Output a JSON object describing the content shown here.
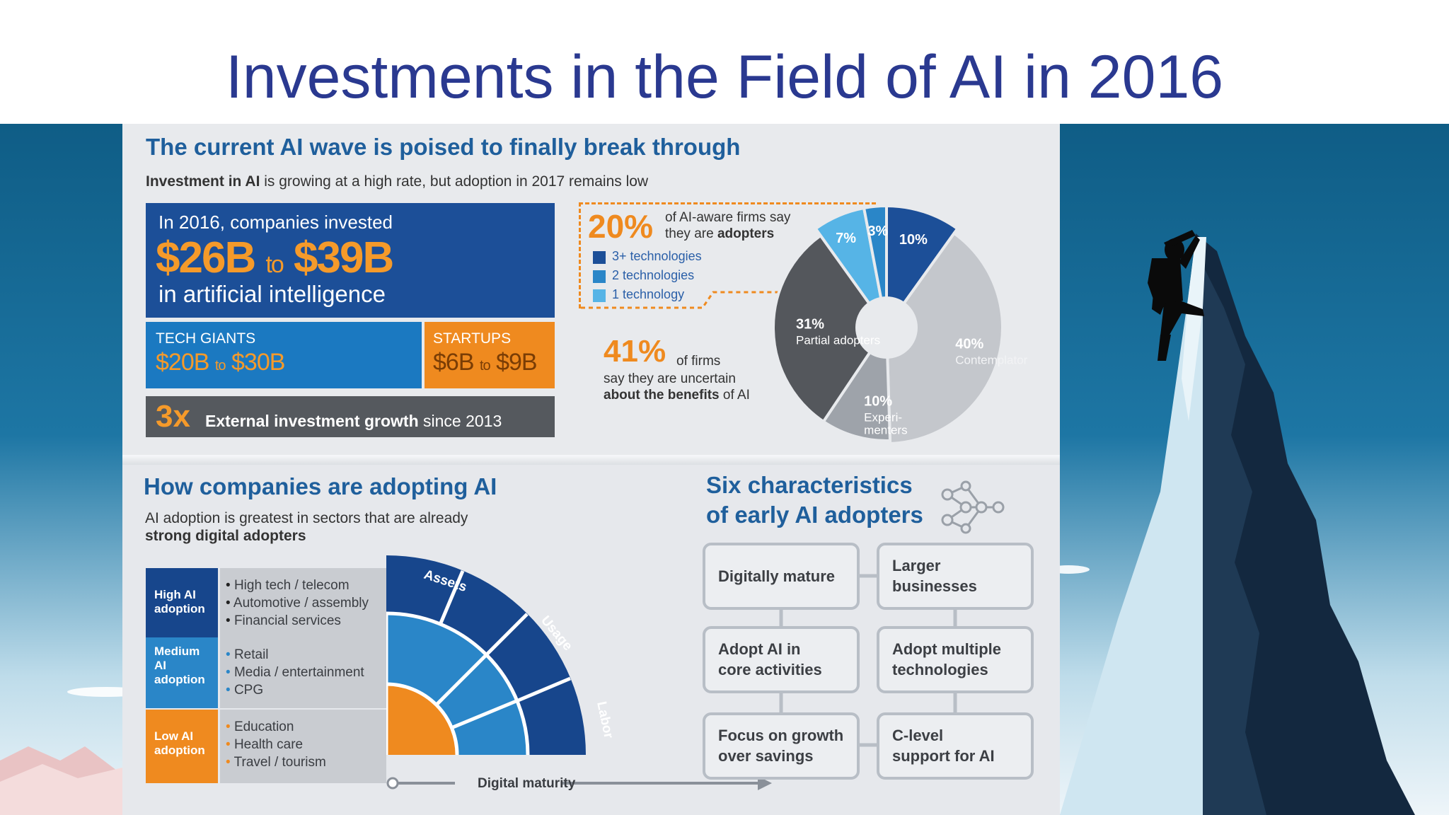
{
  "title": "Investments in the Field of AI in 2016",
  "top": {
    "heading": "The current AI wave is poised to finally break through",
    "subheading_bold": "Investment in AI",
    "subheading_rest": " is growing at a high rate, but adoption in 2017 remains low",
    "invested_intro": "In 2016, companies invested",
    "invested_low": "$26B",
    "invested_to": "to",
    "invested_high": "$39B",
    "invested_outro": "in artificial intelligence",
    "tech_giants_label": "TECH GIANTS",
    "tech_giants_low": "$20B",
    "tech_giants_to": "to",
    "tech_giants_high": "$30B",
    "startups_label": "STARTUPS",
    "startups_low": "$6B",
    "startups_to": "to",
    "startups_high": "$9B",
    "growth_multiple": "3x",
    "growth_text_bold": "External investment growth",
    "growth_text_rest": " since 2013"
  },
  "pie": {
    "adopters_pct": "20%",
    "adopters_text_1": "of AI-aware firms say",
    "adopters_text_2a": "they are ",
    "adopters_text_2b": "adopters",
    "legend": [
      {
        "label": "3+ technologies",
        "color": "#1c4f98"
      },
      {
        "label": "2 technologies",
        "color": "#2a86c8"
      },
      {
        "label": "1 technology",
        "color": "#56b4e6"
      }
    ],
    "uncertain_pct": "41%",
    "uncertain_text_1": "of firms",
    "uncertain_text_2": "say they are uncertain",
    "uncertain_text_3a": "about the benefits",
    "uncertain_text_3b": " of AI"
  },
  "chart_data": {
    "type": "pie",
    "slices": [
      {
        "label": "",
        "value": 10,
        "pct_label": "10%",
        "color": "#1c4f98"
      },
      {
        "label": "Contemplators",
        "value": 40,
        "pct_label": "40%",
        "color": "#c4c7cc"
      },
      {
        "label": "Experi- menters",
        "value": 10,
        "pct_label": "10%",
        "color": "#9ea3aa"
      },
      {
        "label": "Partial adopters",
        "value": 31,
        "pct_label": "31%",
        "color": "#54575c"
      },
      {
        "label": "",
        "value": 7,
        "pct_label": "7%",
        "color": "#56b4e6"
      },
      {
        "label": "",
        "value": 3,
        "pct_label": "3%",
        "color": "#2a86c8"
      }
    ]
  },
  "adoption": {
    "heading": "How companies are adopting AI",
    "sub_1": "AI adoption is greatest in sectors that are already",
    "sub_2": "strong digital adopters",
    "rows": [
      {
        "label_1": "High AI",
        "label_2": "adoption",
        "label_3": "",
        "items": [
          "High tech / telecom",
          "Automotive / assembly",
          "Financial services"
        ],
        "color": "#17468c"
      },
      {
        "label_1": "Medium",
        "label_2": "AI",
        "label_3": "adoption",
        "items": [
          "Retail",
          "Media / entertainment",
          "CPG"
        ],
        "color": "#2a86c8"
      },
      {
        "label_1": "Low AI",
        "label_2": "adoption",
        "label_3": "",
        "items": [
          "Education",
          "Health care",
          "Travel / tourism"
        ],
        "color": "#ef8a1f"
      }
    ],
    "arc_labels": [
      "Assets",
      "Usage",
      "Labor"
    ],
    "axis_label": "Digital maturity"
  },
  "characteristics": {
    "heading_1": "Six characteristics",
    "heading_2": "of early AI adopters",
    "boxes": [
      {
        "line1": "Digitally mature",
        "line2": ""
      },
      {
        "line1": "Larger",
        "line2": "businesses"
      },
      {
        "line1": "Adopt AI in",
        "line2": "core activities"
      },
      {
        "line1": "Adopt multiple",
        "line2": "technologies"
      },
      {
        "line1": "Focus on growth",
        "line2": "over savings"
      },
      {
        "line1": "C-level",
        "line2": "support for AI"
      }
    ]
  }
}
